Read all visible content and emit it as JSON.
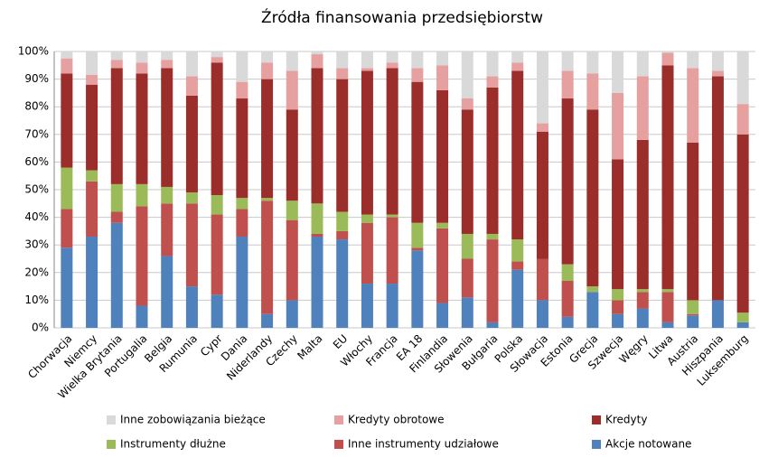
{
  "chart_data": {
    "type": "stacked_bar",
    "title": "Źródła finansowania przedsiębiorstw",
    "categories": [
      "Chorwacja",
      "Niemcy",
      "Wielka Brytania",
      "Portugalia",
      "Belgia",
      "Rumunia",
      "Cypr",
      "Dania",
      "Niderlandy",
      "Czechy",
      "Malta",
      "EU",
      "Włochy",
      "Francja",
      "EA 18",
      "Finlandia",
      "Słowenia",
      "Bułgaria",
      "Polska",
      "Słowacja",
      "Estonia",
      "Grecja",
      "Szwecja",
      "Węgry",
      "Litwa",
      "Austria",
      "Hiszpania",
      "Luksemburg"
    ],
    "series": [
      {
        "name": "Akcje notowane",
        "color": "#4f81bd",
        "values": [
          29,
          33,
          38,
          8,
          26,
          15,
          12,
          33,
          5,
          10,
          33,
          32,
          16,
          16,
          28,
          9,
          11,
          2,
          21,
          10,
          4,
          13,
          5,
          7,
          2,
          4.5,
          10,
          2
        ]
      },
      {
        "name": "Inne instrumenty udziałowe",
        "color": "#c0504d",
        "values": [
          14,
          20,
          4,
          36,
          19,
          30,
          29,
          10,
          41,
          29,
          1,
          3,
          22,
          24,
          1,
          27,
          14,
          30,
          3,
          15,
          13,
          0,
          5,
          6,
          11,
          0.5,
          0,
          0
        ]
      },
      {
        "name": "Instrumenty dłużne",
        "color": "#9bbb59",
        "values": [
          15,
          4,
          10,
          8,
          6,
          4,
          7,
          4,
          1,
          7,
          11,
          7,
          3,
          1,
          9,
          2,
          9,
          2,
          8,
          0,
          6,
          2,
          4,
          1,
          1,
          5,
          0,
          3.5
        ]
      },
      {
        "name": "Kredyty",
        "color": "#9b2d2b",
        "values": [
          34,
          31,
          42,
          40,
          43,
          35,
          48,
          36,
          43,
          33,
          49,
          48,
          52,
          53,
          51,
          48,
          45,
          53,
          61,
          46,
          60,
          64,
          47,
          54,
          81,
          57,
          81,
          64.5
        ]
      },
      {
        "name": "Kredyty obrotowe",
        "color": "#e6a0a0",
        "values": [
          5.5,
          3.5,
          3,
          4,
          3,
          7,
          2,
          6,
          6,
          14,
          5,
          4,
          1,
          2,
          5,
          9,
          4,
          4,
          3,
          3,
          10,
          13,
          24,
          23,
          4.5,
          27,
          2,
          11
        ]
      },
      {
        "name": "Inne zobowiązania bieżące",
        "color": "#d9d9d9",
        "values": [
          2.5,
          8.5,
          3,
          4,
          3,
          9,
          2,
          11,
          4,
          7,
          1,
          6,
          6,
          4,
          6,
          5,
          17,
          9,
          4,
          26,
          7,
          8,
          15,
          9,
          0.5,
          6,
          7,
          19
        ]
      }
    ],
    "ylim": [
      0,
      100
    ],
    "yticks": [
      {
        "value": 0,
        "label": "0%"
      },
      {
        "value": 10,
        "label": "10%"
      },
      {
        "value": 20,
        "label": "20%"
      },
      {
        "value": 30,
        "label": "30%"
      },
      {
        "value": 40,
        "label": "40%"
      },
      {
        "value": 50,
        "label": "50%"
      },
      {
        "value": 60,
        "label": "60%"
      },
      {
        "value": 70,
        "label": "70%"
      },
      {
        "value": 80,
        "label": "80%"
      },
      {
        "value": 90,
        "label": "90%"
      },
      {
        "value": 100,
        "label": "100%"
      }
    ],
    "grid": true,
    "legend": "bottom"
  }
}
